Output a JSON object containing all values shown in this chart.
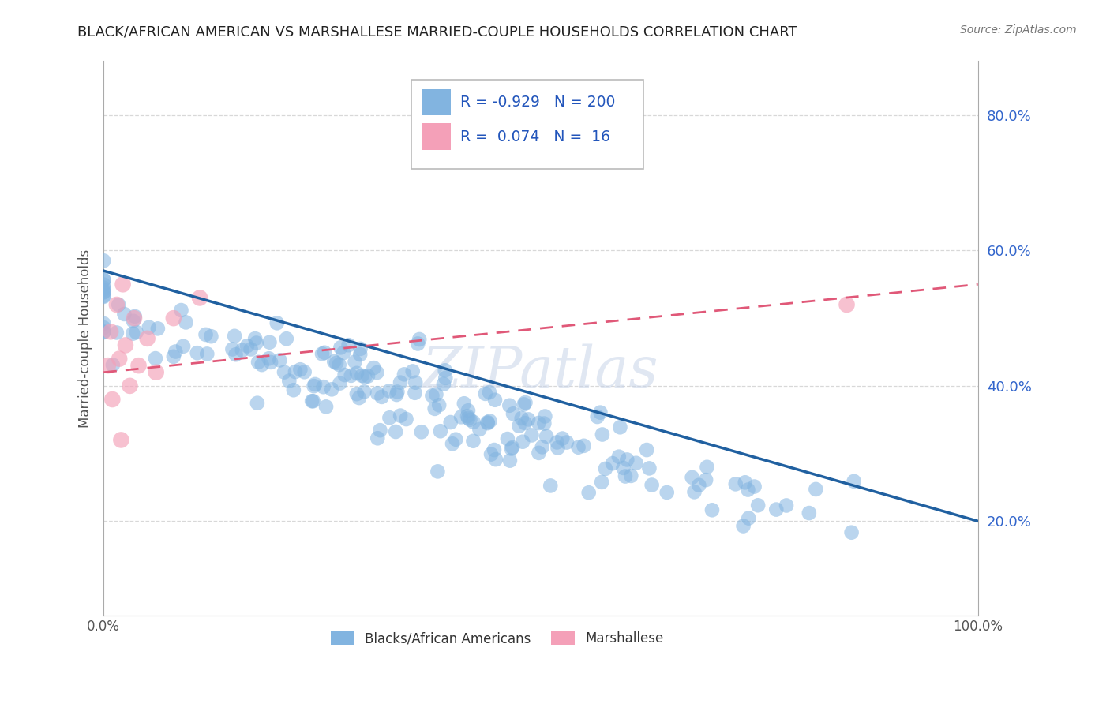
{
  "title": "BLACK/AFRICAN AMERICAN VS MARSHALLESE MARRIED-COUPLE HOUSEHOLDS CORRELATION CHART",
  "source": "Source: ZipAtlas.com",
  "ylabel": "Married-couple Households",
  "legend_label_blue": "Blacks/African Americans",
  "legend_label_pink": "Marshallese",
  "R_blue": -0.929,
  "N_blue": 200,
  "R_pink": 0.074,
  "N_pink": 16,
  "blue_color": "#82b4e0",
  "pink_color": "#f4a0b8",
  "trendline_blue": "#2060a0",
  "trendline_pink": "#e05878",
  "watermark": "ZIPatlas",
  "ytick_values": [
    0.2,
    0.4,
    0.6,
    0.8
  ],
  "xlim": [
    0.0,
    1.0
  ],
  "ylim": [
    0.06,
    0.88
  ],
  "grid_color": "#d8d8d8",
  "background_color": "#ffffff",
  "legend_R_blue": "R = -0.929",
  "legend_N_blue": "N = 200",
  "legend_R_pink": "R =  0.074",
  "legend_N_pink": "N =  16",
  "trendline_blue_x0": 0.0,
  "trendline_blue_y0": 0.57,
  "trendline_blue_x1": 1.0,
  "trendline_blue_y1": 0.2,
  "trendline_pink_x0": 0.0,
  "trendline_pink_y0": 0.42,
  "trendline_pink_x1": 1.0,
  "trendline_pink_y1": 0.55
}
